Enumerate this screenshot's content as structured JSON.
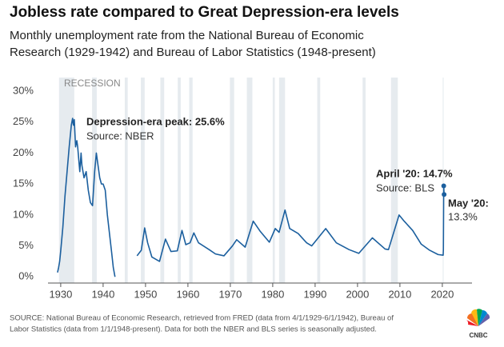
{
  "chart_data": {
    "type": "line",
    "title": "Jobless rate compared to Great Depression-era levels",
    "subtitle": [
      "Monthly unemployment rate from the National Bureau of Economic",
      "Research (1929-1942) and Bureau of Labor Statistics (1948-present)"
    ],
    "recession_label": "RECESSION",
    "recessions": [
      [
        1929.6,
        1933.2
      ],
      [
        1937.4,
        1938.5
      ],
      [
        1945.1,
        1945.8
      ],
      [
        1948.9,
        1949.8
      ],
      [
        1953.5,
        1954.4
      ],
      [
        1957.6,
        1958.3
      ],
      [
        1960.3,
        1961.1
      ],
      [
        1969.9,
        1970.9
      ],
      [
        1973.9,
        1975.2
      ],
      [
        1980.0,
        1980.5
      ],
      [
        1981.5,
        1982.9
      ],
      [
        1990.5,
        1991.2
      ],
      [
        2001.2,
        2001.9
      ],
      [
        2007.9,
        2009.5
      ],
      [
        2020.1,
        2020.3
      ]
    ],
    "x": [
      1929.25,
      1929.5,
      1929.75,
      1930.0,
      1930.5,
      1931.0,
      1931.5,
      1932.0,
      1932.5,
      1932.8,
      1933.0,
      1933.2,
      1933.5,
      1933.8,
      1934.0,
      1934.5,
      1934.8,
      1935.0,
      1935.5,
      1936.0,
      1936.5,
      1937.0,
      1937.5,
      1938.0,
      1938.4,
      1938.8,
      1939.2,
      1939.6,
      1940.0,
      1940.5,
      1941.0,
      1941.5,
      1942.0,
      1942.4,
      1942.8,
      1945.0,
      1948.0,
      1949.0,
      1949.8,
      1950.5,
      1951.5,
      1953.3,
      1954.7,
      1956.0,
      1957.5,
      1958.6,
      1959.5,
      1960.5,
      1961.4,
      1962.5,
      1965.0,
      1966.5,
      1968.5,
      1970.5,
      1971.5,
      1973.5,
      1975.4,
      1977.0,
      1979.2,
      1980.6,
      1981.5,
      1982.9,
      1984.0,
      1986.0,
      1988.0,
      1989.2,
      1992.5,
      1995.0,
      1998.0,
      2000.3,
      2003.5,
      2006.5,
      2007.3,
      2009.8,
      2011.0,
      2013.0,
      2015.0,
      2017.0,
      2019.0,
      2020.2,
      2020.25,
      2020.33,
      2020.42
    ],
    "values": [
      0.7,
      1.5,
      2.5,
      4.2,
      8,
      13,
      17,
      21,
      24.5,
      25.6,
      24.5,
      25.4,
      21,
      22,
      21,
      17,
      20,
      18,
      16,
      17,
      14,
      12,
      11.5,
      17,
      20,
      18,
      16,
      15,
      15,
      14,
      10,
      7,
      4,
      1.5,
      0,
      null,
      3.4,
      4.3,
      7.9,
      5.5,
      3.2,
      2.5,
      6.1,
      4.1,
      4.2,
      7.5,
      5.2,
      5.5,
      7.1,
      5.5,
      4.4,
      3.7,
      3.4,
      5.0,
      6.0,
      4.8,
      9.0,
      7.4,
      5.6,
      7.8,
      7.2,
      10.8,
      7.8,
      7.0,
      5.5,
      5.0,
      7.8,
      5.5,
      4.4,
      3.8,
      6.3,
      4.5,
      4.4,
      10.0,
      9.0,
      7.5,
      5.3,
      4.3,
      3.6,
      3.5,
      4.4,
      14.7,
      13.3
    ],
    "color": "#1b5f9e",
    "xlim": [
      1927,
      2027
    ],
    "xticks": [
      1930,
      1940,
      1950,
      1960,
      1970,
      1980,
      1990,
      2000,
      2010,
      2020
    ],
    "ylim": [
      -1,
      30
    ],
    "yticks": [
      {
        "value": 0,
        "label": "0%"
      },
      {
        "value": 5,
        "label": "5%"
      },
      {
        "value": 10,
        "label": "10%"
      },
      {
        "value": 15,
        "label": "15%"
      },
      {
        "value": 20,
        "label": "20%"
      },
      {
        "value": 25,
        "label": "25%"
      },
      {
        "value": 30,
        "label": "30%"
      }
    ],
    "grid": false,
    "annotations": [
      {
        "title": "Depression-era peak: 25.6%",
        "text": "Source: NBER"
      },
      {
        "title": "April '20: 14.7%",
        "text": "Source: BLS"
      },
      {
        "title": "May '20:",
        "text": "13.3%"
      }
    ],
    "source": [
      "SOURCE: National Bureau of Economic Research, retrieved from FRED (data from 4/1/1929-6/1/1942), Bureau of",
      "Labor Statistics (data from 1/1/1948-present). Data for both the NBER and BLS series is seasonally adjusted."
    ],
    "logo": "CNBC"
  }
}
